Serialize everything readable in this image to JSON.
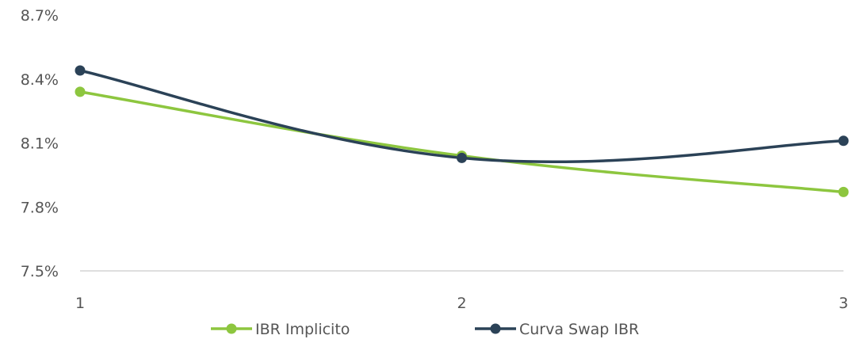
{
  "chart_data": {
    "type": "line",
    "x": [
      1,
      2,
      3
    ],
    "xtick_labels": [
      "1",
      "2",
      "3"
    ],
    "ylim": [
      7.5,
      8.7
    ],
    "ytick_labels": [
      "7.5%",
      "7.8%",
      "8.1%",
      "8.4%",
      "8.7%"
    ],
    "ytick_values": [
      7.5,
      7.8,
      8.1,
      8.4,
      8.7
    ],
    "grid": false,
    "legend_position": "bottom",
    "series": [
      {
        "name": "IBR Implicito",
        "values": [
          8.34,
          8.04,
          7.87
        ],
        "color": "#8dc63f"
      },
      {
        "name": "Curva Swap IBR",
        "values": [
          8.44,
          8.03,
          8.11
        ],
        "color": "#2b4257"
      }
    ]
  }
}
